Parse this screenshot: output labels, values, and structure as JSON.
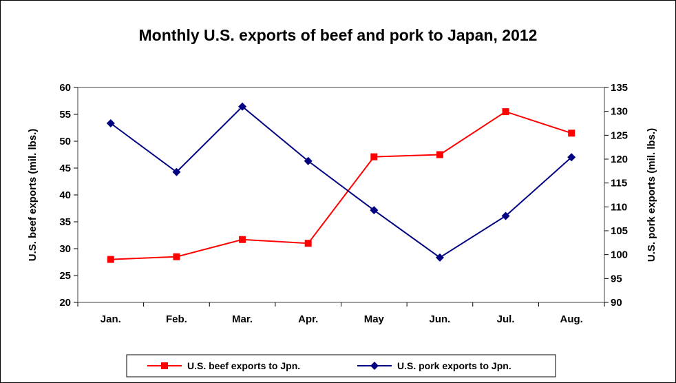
{
  "chart_data": {
    "type": "line",
    "title": "Monthly U.S. exports of beef and pork to Japan, 2012",
    "categories": [
      "Jan.",
      "Feb.",
      "Mar.",
      "Apr.",
      "May",
      "Jun.",
      "Jul.",
      "Aug."
    ],
    "ylabel_left": "U.S. beef exports (mil. lbs.)",
    "ylabel_right": "U.S. pork exports (mil. lbs.)",
    "ylim_left": [
      20,
      60
    ],
    "yticks_left": [
      20,
      25,
      30,
      35,
      40,
      45,
      50,
      55,
      60
    ],
    "ylim_right": [
      90,
      135
    ],
    "yticks_right": [
      90,
      95,
      100,
      105,
      110,
      115,
      120,
      125,
      130,
      135
    ],
    "grid": false,
    "legend_position": "bottom",
    "series": [
      {
        "name": "U.S. beef exports to Jpn.",
        "axis": "left",
        "color": "#ff0000",
        "marker": "square",
        "values": [
          28.0,
          28.5,
          31.7,
          31.0,
          47.1,
          47.5,
          55.5,
          51.5
        ]
      },
      {
        "name": "U.S. pork exports to Jpn.",
        "axis": "right",
        "color": "#000080",
        "marker": "diamond",
        "values": [
          127.5,
          117.3,
          131.0,
          119.6,
          109.3,
          99.4,
          108.1,
          120.4
        ]
      }
    ]
  }
}
